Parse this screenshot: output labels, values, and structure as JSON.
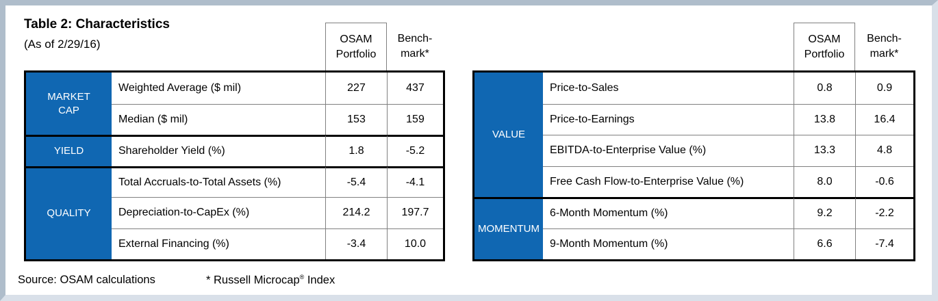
{
  "title": "Table 2: Characteristics",
  "subtitle": "(As of 2/29/16)",
  "column_headers": {
    "portfolio": [
      "OSAM",
      "Portfolio"
    ],
    "benchmark": [
      "Bench-",
      "mark*"
    ]
  },
  "colors": {
    "section_fill": "#1067B2",
    "section_text": "#FFFFFF",
    "grid_thin": "#7F7F7F",
    "grid_thick": "#000000",
    "frame_top_left": "#AFBDCB",
    "frame_bottom_right": "#D9E0E9"
  },
  "tables": [
    {
      "name": "characteristics-left",
      "sections": [
        {
          "header": [
            "MARKET",
            "CAP"
          ],
          "rows": [
            {
              "label": "Weighted Average ($ mil)",
              "portfolio": "227",
              "benchmark": "437"
            },
            {
              "label": "Median ($ mil)",
              "portfolio": "153",
              "benchmark": "159"
            }
          ]
        },
        {
          "header": [
            "YIELD"
          ],
          "rows": [
            {
              "label": "Shareholder Yield (%)",
              "portfolio": "1.8",
              "benchmark": "-5.2"
            }
          ]
        },
        {
          "header": [
            "QUALITY"
          ],
          "rows": [
            {
              "label": "Total Accruals-to-Total Assets (%)",
              "portfolio": "-5.4",
              "benchmark": "-4.1"
            },
            {
              "label": "Depreciation-to-CapEx (%)",
              "portfolio": "214.2",
              "benchmark": "197.7"
            },
            {
              "label": "External Financing (%)",
              "portfolio": "-3.4",
              "benchmark": "10.0"
            }
          ]
        }
      ]
    },
    {
      "name": "characteristics-right",
      "sections": [
        {
          "header": [
            "VALUE"
          ],
          "rows": [
            {
              "label": "Price-to-Sales",
              "portfolio": "0.8",
              "benchmark": "0.9"
            },
            {
              "label": "Price-to-Earnings",
              "portfolio": "13.8",
              "benchmark": "16.4"
            },
            {
              "label": "EBITDA-to-Enterprise Value (%)",
              "portfolio": "13.3",
              "benchmark": "4.8"
            },
            {
              "label": "Free Cash Flow-to-Enterprise Value (%)",
              "portfolio": "8.0",
              "benchmark": "-0.6"
            }
          ]
        },
        {
          "header": [
            "MOMENTUM"
          ],
          "rows": [
            {
              "label": "6-Month Momentum (%)",
              "portfolio": "9.2",
              "benchmark": "-2.2"
            },
            {
              "label": "9-Month Momentum (%)",
              "portfolio": "6.6",
              "benchmark": "-7.4"
            }
          ]
        }
      ]
    }
  ],
  "footer": {
    "source": "Source: OSAM calculations",
    "note_prefix": "* Russell Microcap",
    "note_symbol": "®",
    "note_suffix": " Index"
  }
}
